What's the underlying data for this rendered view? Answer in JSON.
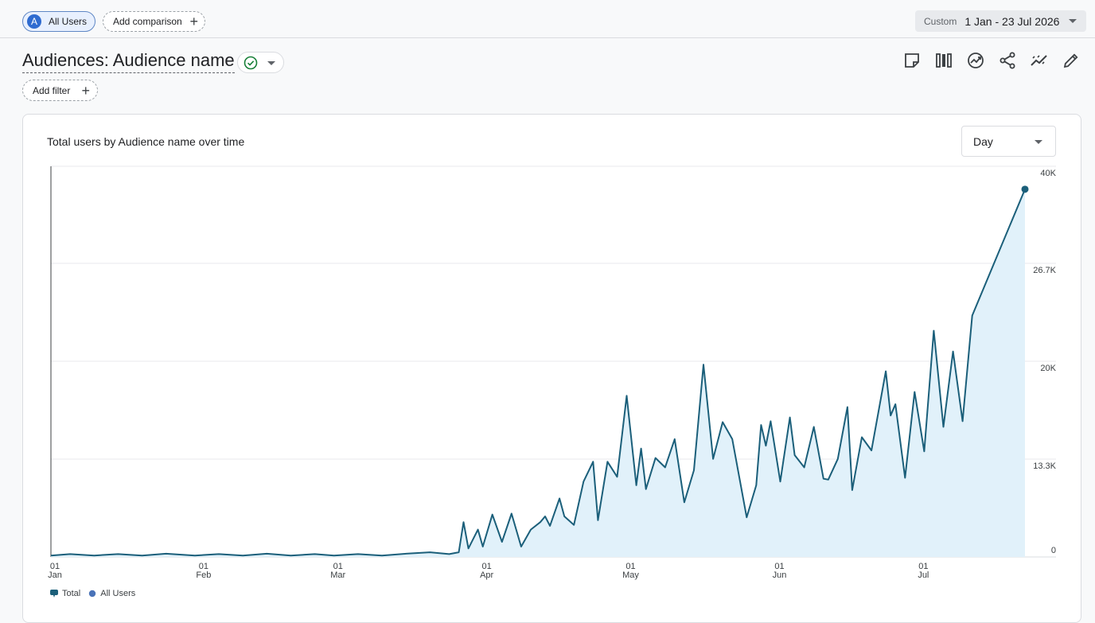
{
  "header": {
    "comparison_chip": {
      "avatar_letter": "A",
      "label": "All Users"
    },
    "add_comparison_label": "Add comparison",
    "date_range": {
      "mode": "Custom",
      "range": "1 Jan - 23 Jul 2026"
    }
  },
  "page": {
    "title": "Audiences: Audience name",
    "add_filter_label": "Add filter"
  },
  "toolbar": {
    "icons": [
      "note-icon",
      "compare-columns-icon",
      "insights-icon",
      "share-icon",
      "trend-analysis-icon",
      "edit-icon"
    ]
  },
  "card": {
    "title": "Total users by Audience name over time",
    "granularity": "Day"
  },
  "colors": {
    "line": "#1b5f7a",
    "area": "#e1f1fa",
    "accent": "#2e6bd0",
    "status": "#188038"
  },
  "chart_data": {
    "type": "area",
    "title": "Total users by Audience name over time",
    "x_start": "2026-01-01",
    "x_end": "2026-07-23",
    "ylim": [
      0,
      40000
    ],
    "y_ticks": [
      {
        "value": 0,
        "label": "0"
      },
      {
        "value": 13300,
        "label": "13.3K"
      },
      {
        "value": 20000,
        "label": "20K"
      },
      {
        "value": 26700,
        "label": "26.7K"
      },
      {
        "value": 40000,
        "label": "40K"
      }
    ],
    "x_ticks": [
      {
        "date": "2026-01-01",
        "day": "01",
        "month": "Jan"
      },
      {
        "date": "2026-02-01",
        "day": "01",
        "month": "Feb"
      },
      {
        "date": "2026-03-01",
        "day": "01",
        "month": "Mar"
      },
      {
        "date": "2026-04-01",
        "day": "01",
        "month": "Apr"
      },
      {
        "date": "2026-05-01",
        "day": "01",
        "month": "May"
      },
      {
        "date": "2026-06-01",
        "day": "01",
        "month": "Jun"
      },
      {
        "date": "2026-07-01",
        "day": "01",
        "month": "Jul"
      }
    ],
    "grid": true,
    "legend_position": "bottom-left",
    "series": [
      {
        "name": "Total",
        "color": "#1b5f7a",
        "points": [
          [
            "2026-01-01",
            150
          ],
          [
            "2026-01-05",
            300
          ],
          [
            "2026-01-10",
            150
          ],
          [
            "2026-01-15",
            300
          ],
          [
            "2026-01-20",
            150
          ],
          [
            "2026-01-25",
            350
          ],
          [
            "2026-01-31",
            150
          ],
          [
            "2026-02-05",
            300
          ],
          [
            "2026-02-10",
            150
          ],
          [
            "2026-02-15",
            350
          ],
          [
            "2026-02-20",
            150
          ],
          [
            "2026-02-25",
            300
          ],
          [
            "2026-03-01",
            150
          ],
          [
            "2026-03-06",
            300
          ],
          [
            "2026-03-11",
            150
          ],
          [
            "2026-03-16",
            350
          ],
          [
            "2026-03-21",
            500
          ],
          [
            "2026-03-25",
            300
          ],
          [
            "2026-03-27",
            500
          ],
          [
            "2026-03-28",
            3700
          ],
          [
            "2026-03-29",
            900
          ],
          [
            "2026-03-31",
            2900
          ],
          [
            "2026-04-01",
            1100
          ],
          [
            "2026-04-03",
            4500
          ],
          [
            "2026-04-05",
            1600
          ],
          [
            "2026-04-07",
            4600
          ],
          [
            "2026-04-09",
            1100
          ],
          [
            "2026-04-11",
            2900
          ],
          [
            "2026-04-13",
            3700
          ],
          [
            "2026-04-14",
            4300
          ],
          [
            "2026-04-15",
            3300
          ],
          [
            "2026-04-17",
            6200
          ],
          [
            "2026-04-18",
            4300
          ],
          [
            "2026-04-20",
            3400
          ],
          [
            "2026-04-22",
            8000
          ],
          [
            "2026-04-24",
            10100
          ],
          [
            "2026-04-25",
            3900
          ],
          [
            "2026-04-27",
            10100
          ],
          [
            "2026-04-29",
            8500
          ],
          [
            "2026-05-01",
            17100
          ],
          [
            "2026-05-03",
            7600
          ],
          [
            "2026-05-04",
            11500
          ],
          [
            "2026-05-05",
            7200
          ],
          [
            "2026-05-07",
            10500
          ],
          [
            "2026-05-09",
            9500
          ],
          [
            "2026-05-11",
            12500
          ],
          [
            "2026-05-13",
            5800
          ],
          [
            "2026-05-15",
            9200
          ],
          [
            "2026-05-17",
            20400
          ],
          [
            "2026-05-19",
            10400
          ],
          [
            "2026-05-21",
            14300
          ],
          [
            "2026-05-23",
            12500
          ],
          [
            "2026-05-26",
            4200
          ],
          [
            "2026-05-28",
            7600
          ],
          [
            "2026-05-29",
            14000
          ],
          [
            "2026-05-30",
            11800
          ],
          [
            "2026-05-31",
            14400
          ],
          [
            "2026-06-02",
            8000
          ],
          [
            "2026-06-04",
            14800
          ],
          [
            "2026-06-05",
            10800
          ],
          [
            "2026-06-07",
            9500
          ],
          [
            "2026-06-09",
            13800
          ],
          [
            "2026-06-11",
            8300
          ],
          [
            "2026-06-12",
            8200
          ],
          [
            "2026-06-14",
            10400
          ],
          [
            "2026-06-16",
            15900
          ],
          [
            "2026-06-17",
            7100
          ],
          [
            "2026-06-19",
            12700
          ],
          [
            "2026-06-21",
            11300
          ],
          [
            "2026-06-24",
            19700
          ],
          [
            "2026-06-25",
            15000
          ],
          [
            "2026-06-26",
            16200
          ],
          [
            "2026-06-28",
            8400
          ],
          [
            "2026-06-30",
            17500
          ],
          [
            "2026-07-02",
            11200
          ],
          [
            "2026-07-04",
            24000
          ],
          [
            "2026-07-06",
            13800
          ],
          [
            "2026-07-08",
            21800
          ],
          [
            "2026-07-10",
            14400
          ],
          [
            "2026-07-12",
            25600
          ]
        ]
      },
      {
        "name": "All Users",
        "color": "#4a73b8"
      }
    ],
    "end_point": {
      "date": "2026-07-23",
      "value": 39000
    }
  }
}
